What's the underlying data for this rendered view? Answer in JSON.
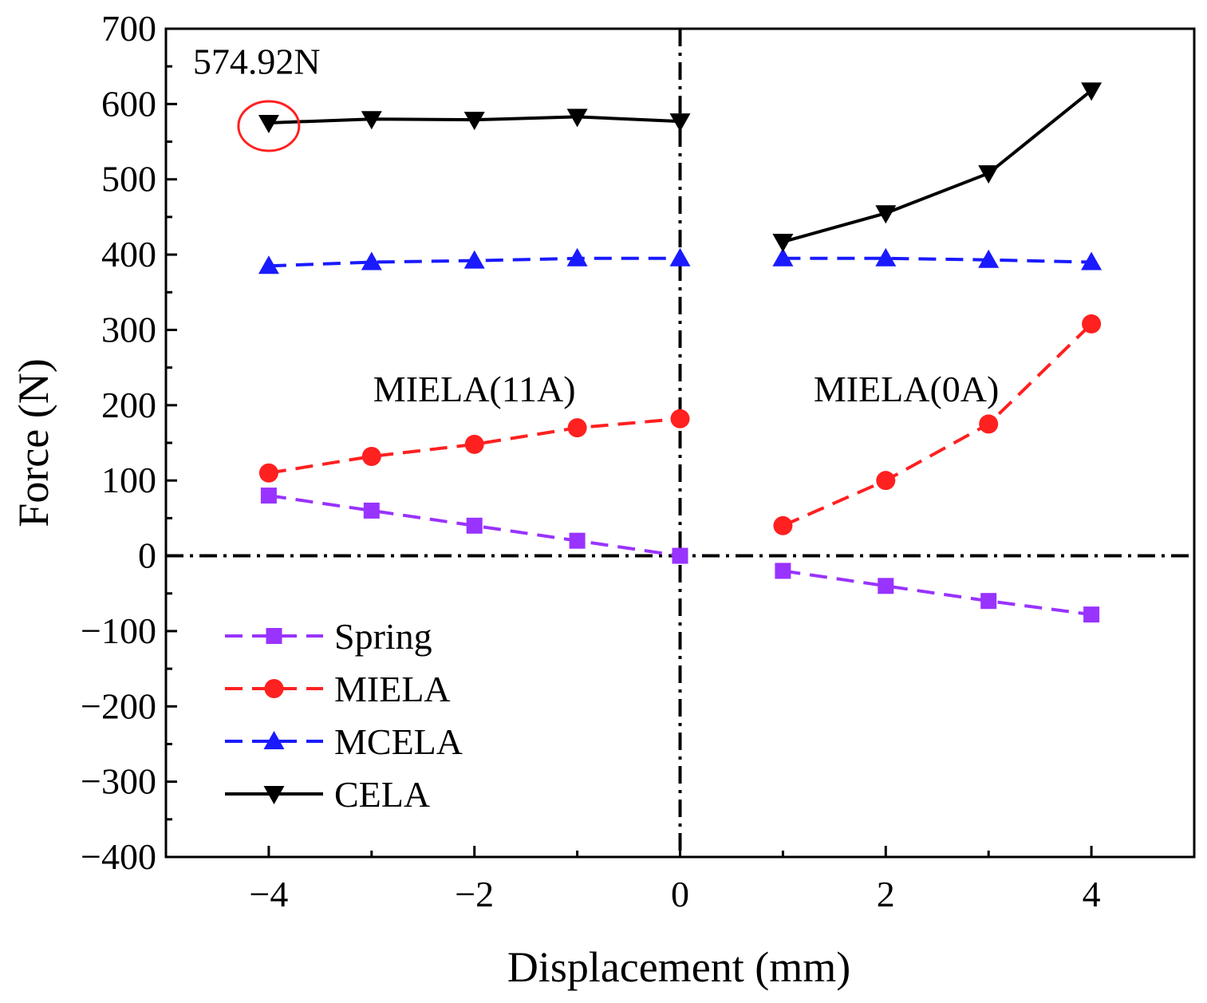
{
  "chart_data": {
    "type": "line",
    "title": "",
    "xlabel": "Displacement (mm)",
    "ylabel": "Force (N)",
    "xlim": [
      -5,
      5
    ],
    "ylim": [
      -400,
      700
    ],
    "xticks": [
      -4,
      -2,
      0,
      2,
      4
    ],
    "xtick_labels": [
      "−4",
      "−2",
      "0",
      "2",
      "4"
    ],
    "yticks": [
      -400,
      -300,
      -200,
      -100,
      0,
      100,
      200,
      300,
      400,
      500,
      600,
      700
    ],
    "ytick_labels": [
      "−400",
      "−300",
      "−200",
      "−100",
      "0",
      "100",
      "200",
      "300",
      "400",
      "500",
      "600",
      "700"
    ],
    "grid": false,
    "legend_position": "bottom-left",
    "series": [
      {
        "name": "Spring",
        "color": "#9933ff",
        "marker": "square",
        "line": "dashed",
        "x": [
          -4,
          -3,
          -2,
          -1,
          0,
          1,
          2,
          3,
          4
        ],
        "y": [
          80,
          60,
          40,
          20,
          0,
          -20,
          -40,
          -60,
          -78
        ]
      },
      {
        "name": "MIELA",
        "color": "#ff2020",
        "marker": "circle",
        "line": "dashed",
        "x": [
          -4,
          -3,
          -2,
          -1,
          0,
          1,
          2,
          3,
          4
        ],
        "y": [
          110,
          132,
          148,
          170,
          182,
          40,
          100,
          175,
          308
        ]
      },
      {
        "name": "MCELA",
        "color": "#1a1aff",
        "marker": "triangle-up",
        "line": "dashed",
        "x": [
          -4,
          -3,
          -2,
          -1,
          0,
          1,
          2,
          3,
          4
        ],
        "y": [
          385,
          390,
          392,
          395,
          395,
          395,
          395,
          393,
          390
        ]
      },
      {
        "name": "CELA",
        "color": "#000000",
        "marker": "triangle-down",
        "line": "solid",
        "x": [
          -4,
          -3,
          -2,
          -1,
          0,
          1,
          2,
          3,
          4
        ],
        "y": [
          575,
          580,
          579,
          583,
          577,
          417,
          455,
          508,
          618
        ]
      }
    ],
    "series_segments": [
      [
        0,
        4
      ],
      [
        5,
        8
      ]
    ],
    "annotations": [
      {
        "text": "574.92N",
        "x": -4,
        "y": 640
      },
      {
        "text": "MIELA(11A)",
        "x": -2,
        "y": 205
      },
      {
        "text": "MIELA(0A)",
        "x": 2.2,
        "y": 205
      }
    ],
    "highlight": {
      "x": -4,
      "y": 575,
      "color": "#ff2020"
    },
    "reference_lines": {
      "x": 0,
      "y": 0
    }
  }
}
